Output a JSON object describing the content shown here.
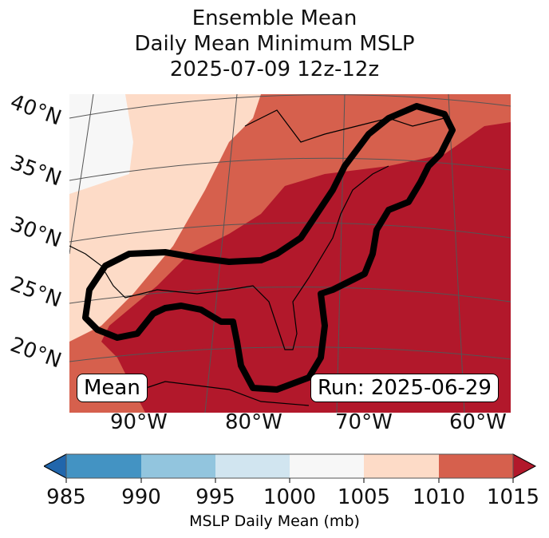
{
  "title": {
    "line1": "Ensemble Mean",
    "line2": "Daily Mean Minimum MSLP",
    "line3": "2025-07-09 12z-12z"
  },
  "lat_labels": [
    "40°N",
    "35°N",
    "30°N",
    "25°N",
    "20°N"
  ],
  "lon_labels": [
    "90°W",
    "80°W",
    "70°W",
    "60°W"
  ],
  "mean_box": "Mean",
  "run_box": "Run: 2025-06-29",
  "colorbar": {
    "ticks": [
      "985",
      "990",
      "995",
      "1000",
      "1005",
      "1010",
      "1015"
    ],
    "label": "MSLP Daily Mean (mb)",
    "colors": [
      "#2166ac",
      "#4393c3",
      "#92c5de",
      "#d1e5f0",
      "#f7f7f7",
      "#fddbc7",
      "#d6604d",
      "#b2182b"
    ]
  }
}
